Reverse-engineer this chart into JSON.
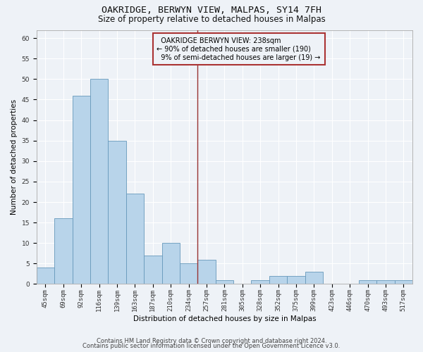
{
  "title1": "OAKRIDGE, BERWYN VIEW, MALPAS, SY14 7FH",
  "title2": "Size of property relative to detached houses in Malpas",
  "xlabel": "Distribution of detached houses by size in Malpas",
  "ylabel": "Number of detached properties",
  "categories": [
    "45sqm",
    "69sqm",
    "92sqm",
    "116sqm",
    "139sqm",
    "163sqm",
    "187sqm",
    "210sqm",
    "234sqm",
    "257sqm",
    "281sqm",
    "305sqm",
    "328sqm",
    "352sqm",
    "375sqm",
    "399sqm",
    "423sqm",
    "446sqm",
    "470sqm",
    "493sqm",
    "517sqm"
  ],
  "values": [
    4,
    16,
    46,
    50,
    35,
    22,
    7,
    10,
    5,
    6,
    1,
    0,
    1,
    2,
    2,
    3,
    0,
    0,
    1,
    1,
    1
  ],
  "bar_color": "#b8d4ea",
  "bar_edge_color": "#6699bb",
  "property_label": "OAKRIDGE BERWYN VIEW: 238sqm",
  "smaller_pct": 90,
  "smaller_count": 190,
  "larger_pct": 9,
  "larger_count": 19,
  "vline_color": "#993333",
  "annotation_box_color": "#aa3333",
  "ylim": [
    0,
    62
  ],
  "yticks": [
    0,
    5,
    10,
    15,
    20,
    25,
    30,
    35,
    40,
    45,
    50,
    55,
    60
  ],
  "footer1": "Contains HM Land Registry data © Crown copyright and database right 2024.",
  "footer2": "Contains public sector information licensed under the Open Government Licence v3.0.",
  "background_color": "#eef2f7",
  "grid_color": "#ffffff",
  "title1_fontsize": 9.5,
  "title2_fontsize": 8.5,
  "axis_label_fontsize": 7.5,
  "tick_fontsize": 6.5,
  "annotation_fontsize": 7.0,
  "footer_fontsize": 6.0
}
